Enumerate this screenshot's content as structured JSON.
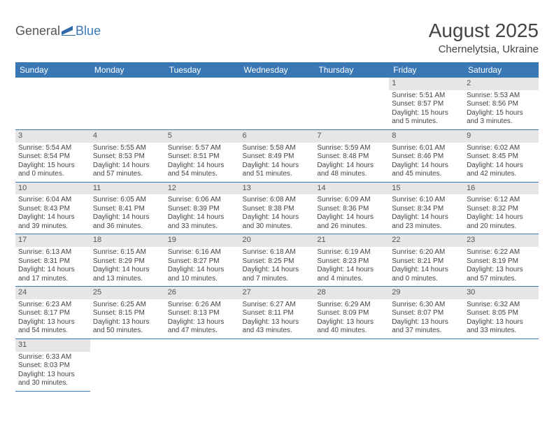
{
  "logo": {
    "text1": "General",
    "text2": "Blue",
    "icon_color": "#2f6aa8"
  },
  "title": "August 2025",
  "location": "Chernelytsia, Ukraine",
  "colors": {
    "header_bg": "#3a78b5",
    "header_text": "#ffffff",
    "daynum_bg": "#e6e6e6",
    "grid_line": "#3a78b5",
    "body_text": "#444444"
  },
  "weekdays": [
    "Sunday",
    "Monday",
    "Tuesday",
    "Wednesday",
    "Thursday",
    "Friday",
    "Saturday"
  ],
  "weeks": [
    [
      {
        "day": "",
        "sunrise": "",
        "sunset": "",
        "daylight": ""
      },
      {
        "day": "",
        "sunrise": "",
        "sunset": "",
        "daylight": ""
      },
      {
        "day": "",
        "sunrise": "",
        "sunset": "",
        "daylight": ""
      },
      {
        "day": "",
        "sunrise": "",
        "sunset": "",
        "daylight": ""
      },
      {
        "day": "",
        "sunrise": "",
        "sunset": "",
        "daylight": ""
      },
      {
        "day": "1",
        "sunrise": "Sunrise: 5:51 AM",
        "sunset": "Sunset: 8:57 PM",
        "daylight": "Daylight: 15 hours and 5 minutes."
      },
      {
        "day": "2",
        "sunrise": "Sunrise: 5:53 AM",
        "sunset": "Sunset: 8:56 PM",
        "daylight": "Daylight: 15 hours and 3 minutes."
      }
    ],
    [
      {
        "day": "3",
        "sunrise": "Sunrise: 5:54 AM",
        "sunset": "Sunset: 8:54 PM",
        "daylight": "Daylight: 15 hours and 0 minutes."
      },
      {
        "day": "4",
        "sunrise": "Sunrise: 5:55 AM",
        "sunset": "Sunset: 8:53 PM",
        "daylight": "Daylight: 14 hours and 57 minutes."
      },
      {
        "day": "5",
        "sunrise": "Sunrise: 5:57 AM",
        "sunset": "Sunset: 8:51 PM",
        "daylight": "Daylight: 14 hours and 54 minutes."
      },
      {
        "day": "6",
        "sunrise": "Sunrise: 5:58 AM",
        "sunset": "Sunset: 8:49 PM",
        "daylight": "Daylight: 14 hours and 51 minutes."
      },
      {
        "day": "7",
        "sunrise": "Sunrise: 5:59 AM",
        "sunset": "Sunset: 8:48 PM",
        "daylight": "Daylight: 14 hours and 48 minutes."
      },
      {
        "day": "8",
        "sunrise": "Sunrise: 6:01 AM",
        "sunset": "Sunset: 8:46 PM",
        "daylight": "Daylight: 14 hours and 45 minutes."
      },
      {
        "day": "9",
        "sunrise": "Sunrise: 6:02 AM",
        "sunset": "Sunset: 8:45 PM",
        "daylight": "Daylight: 14 hours and 42 minutes."
      }
    ],
    [
      {
        "day": "10",
        "sunrise": "Sunrise: 6:04 AM",
        "sunset": "Sunset: 8:43 PM",
        "daylight": "Daylight: 14 hours and 39 minutes."
      },
      {
        "day": "11",
        "sunrise": "Sunrise: 6:05 AM",
        "sunset": "Sunset: 8:41 PM",
        "daylight": "Daylight: 14 hours and 36 minutes."
      },
      {
        "day": "12",
        "sunrise": "Sunrise: 6:06 AM",
        "sunset": "Sunset: 8:39 PM",
        "daylight": "Daylight: 14 hours and 33 minutes."
      },
      {
        "day": "13",
        "sunrise": "Sunrise: 6:08 AM",
        "sunset": "Sunset: 8:38 PM",
        "daylight": "Daylight: 14 hours and 30 minutes."
      },
      {
        "day": "14",
        "sunrise": "Sunrise: 6:09 AM",
        "sunset": "Sunset: 8:36 PM",
        "daylight": "Daylight: 14 hours and 26 minutes."
      },
      {
        "day": "15",
        "sunrise": "Sunrise: 6:10 AM",
        "sunset": "Sunset: 8:34 PM",
        "daylight": "Daylight: 14 hours and 23 minutes."
      },
      {
        "day": "16",
        "sunrise": "Sunrise: 6:12 AM",
        "sunset": "Sunset: 8:32 PM",
        "daylight": "Daylight: 14 hours and 20 minutes."
      }
    ],
    [
      {
        "day": "17",
        "sunrise": "Sunrise: 6:13 AM",
        "sunset": "Sunset: 8:31 PM",
        "daylight": "Daylight: 14 hours and 17 minutes."
      },
      {
        "day": "18",
        "sunrise": "Sunrise: 6:15 AM",
        "sunset": "Sunset: 8:29 PM",
        "daylight": "Daylight: 14 hours and 13 minutes."
      },
      {
        "day": "19",
        "sunrise": "Sunrise: 6:16 AM",
        "sunset": "Sunset: 8:27 PM",
        "daylight": "Daylight: 14 hours and 10 minutes."
      },
      {
        "day": "20",
        "sunrise": "Sunrise: 6:18 AM",
        "sunset": "Sunset: 8:25 PM",
        "daylight": "Daylight: 14 hours and 7 minutes."
      },
      {
        "day": "21",
        "sunrise": "Sunrise: 6:19 AM",
        "sunset": "Sunset: 8:23 PM",
        "daylight": "Daylight: 14 hours and 4 minutes."
      },
      {
        "day": "22",
        "sunrise": "Sunrise: 6:20 AM",
        "sunset": "Sunset: 8:21 PM",
        "daylight": "Daylight: 14 hours and 0 minutes."
      },
      {
        "day": "23",
        "sunrise": "Sunrise: 6:22 AM",
        "sunset": "Sunset: 8:19 PM",
        "daylight": "Daylight: 13 hours and 57 minutes."
      }
    ],
    [
      {
        "day": "24",
        "sunrise": "Sunrise: 6:23 AM",
        "sunset": "Sunset: 8:17 PM",
        "daylight": "Daylight: 13 hours and 54 minutes."
      },
      {
        "day": "25",
        "sunrise": "Sunrise: 6:25 AM",
        "sunset": "Sunset: 8:15 PM",
        "daylight": "Daylight: 13 hours and 50 minutes."
      },
      {
        "day": "26",
        "sunrise": "Sunrise: 6:26 AM",
        "sunset": "Sunset: 8:13 PM",
        "daylight": "Daylight: 13 hours and 47 minutes."
      },
      {
        "day": "27",
        "sunrise": "Sunrise: 6:27 AM",
        "sunset": "Sunset: 8:11 PM",
        "daylight": "Daylight: 13 hours and 43 minutes."
      },
      {
        "day": "28",
        "sunrise": "Sunrise: 6:29 AM",
        "sunset": "Sunset: 8:09 PM",
        "daylight": "Daylight: 13 hours and 40 minutes."
      },
      {
        "day": "29",
        "sunrise": "Sunrise: 6:30 AM",
        "sunset": "Sunset: 8:07 PM",
        "daylight": "Daylight: 13 hours and 37 minutes."
      },
      {
        "day": "30",
        "sunrise": "Sunrise: 6:32 AM",
        "sunset": "Sunset: 8:05 PM",
        "daylight": "Daylight: 13 hours and 33 minutes."
      }
    ],
    [
      {
        "day": "31",
        "sunrise": "Sunrise: 6:33 AM",
        "sunset": "Sunset: 8:03 PM",
        "daylight": "Daylight: 13 hours and 30 minutes."
      },
      {
        "day": "",
        "sunrise": "",
        "sunset": "",
        "daylight": ""
      },
      {
        "day": "",
        "sunrise": "",
        "sunset": "",
        "daylight": ""
      },
      {
        "day": "",
        "sunrise": "",
        "sunset": "",
        "daylight": ""
      },
      {
        "day": "",
        "sunrise": "",
        "sunset": "",
        "daylight": ""
      },
      {
        "day": "",
        "sunrise": "",
        "sunset": "",
        "daylight": ""
      },
      {
        "day": "",
        "sunrise": "",
        "sunset": "",
        "daylight": ""
      }
    ]
  ]
}
